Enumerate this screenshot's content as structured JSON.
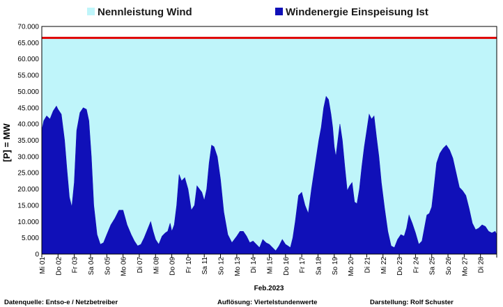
{
  "chart_data": {
    "type": "area",
    "month_label": "Feb.2023",
    "ylabel": "[P] = MW",
    "ylim": [
      0,
      70000
    ],
    "y_ticks": [
      "0",
      "5.000",
      "10.000",
      "15.000",
      "20.000",
      "25.000",
      "30.000",
      "35.000",
      "40.000",
      "45.000",
      "50.000",
      "55.000",
      "60.000",
      "65.000",
      "70.000"
    ],
    "y_tick_values": [
      0,
      5000,
      10000,
      15000,
      20000,
      25000,
      30000,
      35000,
      40000,
      45000,
      50000,
      55000,
      60000,
      65000,
      70000
    ],
    "x_tick_labels": [
      "Mi 01",
      "Do 02",
      "Fr 03",
      "Sa 04",
      "So 05",
      "Mo 06",
      "Di 07",
      "Mi 08",
      "Do 09",
      "Fr 10",
      "Sa 11",
      "So 12",
      "Mo 13",
      "Di 14",
      "Mi 15",
      "Do 16",
      "Fr 17",
      "Sa 18",
      "So 19",
      "Mo 20",
      "Di 21",
      "Mi 22",
      "Do 23",
      "Fr 24",
      "Sa 25",
      "So 26",
      "Mo 27",
      "Di 28"
    ],
    "x_range_days": [
      0,
      28
    ],
    "grid": true,
    "legend_position": "top",
    "series": [
      {
        "name": "Nennleistung Wind",
        "type": "area",
        "color": "#bff5fa",
        "line_color": "#e00000",
        "value": 66500
      },
      {
        "name": "Windenergie Einspeisung Ist",
        "type": "area",
        "color": "#1010b8",
        "x_days": [
          0,
          0.12,
          0.3,
          0.5,
          0.7,
          0.9,
          1.0,
          1.2,
          1.4,
          1.55,
          1.7,
          1.85,
          2.0,
          2.15,
          2.35,
          2.55,
          2.75,
          2.9,
          3.05,
          3.2,
          3.4,
          3.6,
          3.8,
          4.0,
          4.25,
          4.5,
          4.75,
          5.0,
          5.25,
          5.5,
          5.7,
          5.9,
          6.1,
          6.3,
          6.5,
          6.7,
          6.85,
          7.0,
          7.2,
          7.4,
          7.6,
          7.75,
          7.9,
          8.0,
          8.15,
          8.3,
          8.45,
          8.6,
          8.8,
          9.0,
          9.2,
          9.4,
          9.55,
          9.7,
          9.85,
          10.0,
          10.15,
          10.3,
          10.45,
          10.6,
          10.8,
          11.0,
          11.2,
          11.45,
          11.7,
          12.0,
          12.2,
          12.4,
          12.6,
          12.8,
          13.0,
          13.2,
          13.4,
          13.6,
          13.8,
          14.0,
          14.2,
          14.4,
          14.6,
          14.8,
          15.0,
          15.15,
          15.3,
          15.45,
          15.6,
          15.8,
          16.0,
          16.2,
          16.4,
          16.6,
          16.75,
          16.9,
          17.05,
          17.2,
          17.35,
          17.5,
          17.65,
          17.8,
          17.9,
          18.0,
          18.1,
          18.2,
          18.35,
          18.5,
          18.65,
          18.8,
          18.95,
          19.1,
          19.25,
          19.4,
          19.55,
          19.7,
          19.85,
          20.0,
          20.15,
          20.3,
          20.45,
          20.6,
          20.75,
          20.9,
          21.1,
          21.3,
          21.5,
          21.7,
          21.9,
          22.1,
          22.3,
          22.45,
          22.6,
          22.8,
          23.0,
          23.2,
          23.4,
          23.55,
          23.7,
          23.85,
          24.0,
          24.15,
          24.3,
          24.5,
          24.7,
          24.9,
          25.1,
          25.3,
          25.5,
          25.7,
          25.9,
          26.1,
          26.3,
          26.5,
          26.7,
          26.9,
          27.1,
          27.3,
          27.5,
          27.7,
          27.9,
          28.0
        ],
        "values": [
          38000,
          41000,
          42500,
          41500,
          44000,
          45500,
          44500,
          43000,
          35000,
          26000,
          17500,
          14500,
          22000,
          38000,
          43500,
          45000,
          44500,
          41000,
          30000,
          15000,
          6000,
          3000,
          3500,
          6000,
          9000,
          11000,
          13500,
          13500,
          9000,
          6000,
          4000,
          2500,
          3000,
          5000,
          7500,
          10000,
          7000,
          4500,
          3000,
          5500,
          6500,
          7000,
          9500,
          7000,
          9000,
          15000,
          24500,
          22500,
          23500,
          20000,
          13500,
          15000,
          21000,
          20000,
          19000,
          16500,
          20000,
          28000,
          33500,
          33000,
          30000,
          23000,
          13000,
          6000,
          3500,
          5500,
          7000,
          7000,
          5500,
          3500,
          4000,
          3000,
          2000,
          4500,
          3500,
          3000,
          2000,
          1000,
          2500,
          4500,
          3000,
          2500,
          2000,
          5000,
          10000,
          18000,
          19000,
          15000,
          12500,
          20000,
          25000,
          30000,
          35000,
          39000,
          45000,
          48500,
          47500,
          43000,
          39000,
          33000,
          30000,
          34000,
          40000,
          35000,
          27000,
          19500,
          21000,
          22000,
          16000,
          15500,
          20000,
          27000,
          33000,
          38000,
          43000,
          41500,
          42500,
          36000,
          30000,
          22000,
          14000,
          7000,
          2500,
          2000,
          4500,
          6000,
          5500,
          8000,
          12000,
          9500,
          6500,
          3000,
          4000,
          8000,
          12000,
          12500,
          14500,
          21000,
          28000,
          31000,
          32500,
          33500,
          32000,
          29500,
          25000,
          20500,
          19500,
          18000,
          14000,
          9500,
          7500,
          8000,
          9000,
          8500,
          7000,
          6500,
          7000,
          6000
        ]
      }
    ]
  },
  "footer": {
    "source": "Datenquelle:  Entso-e  / Netzbetreiber",
    "resolution": "Auflösung: Viertelstundenwerte",
    "author": "Darstellung:  Rolf Schuster"
  }
}
